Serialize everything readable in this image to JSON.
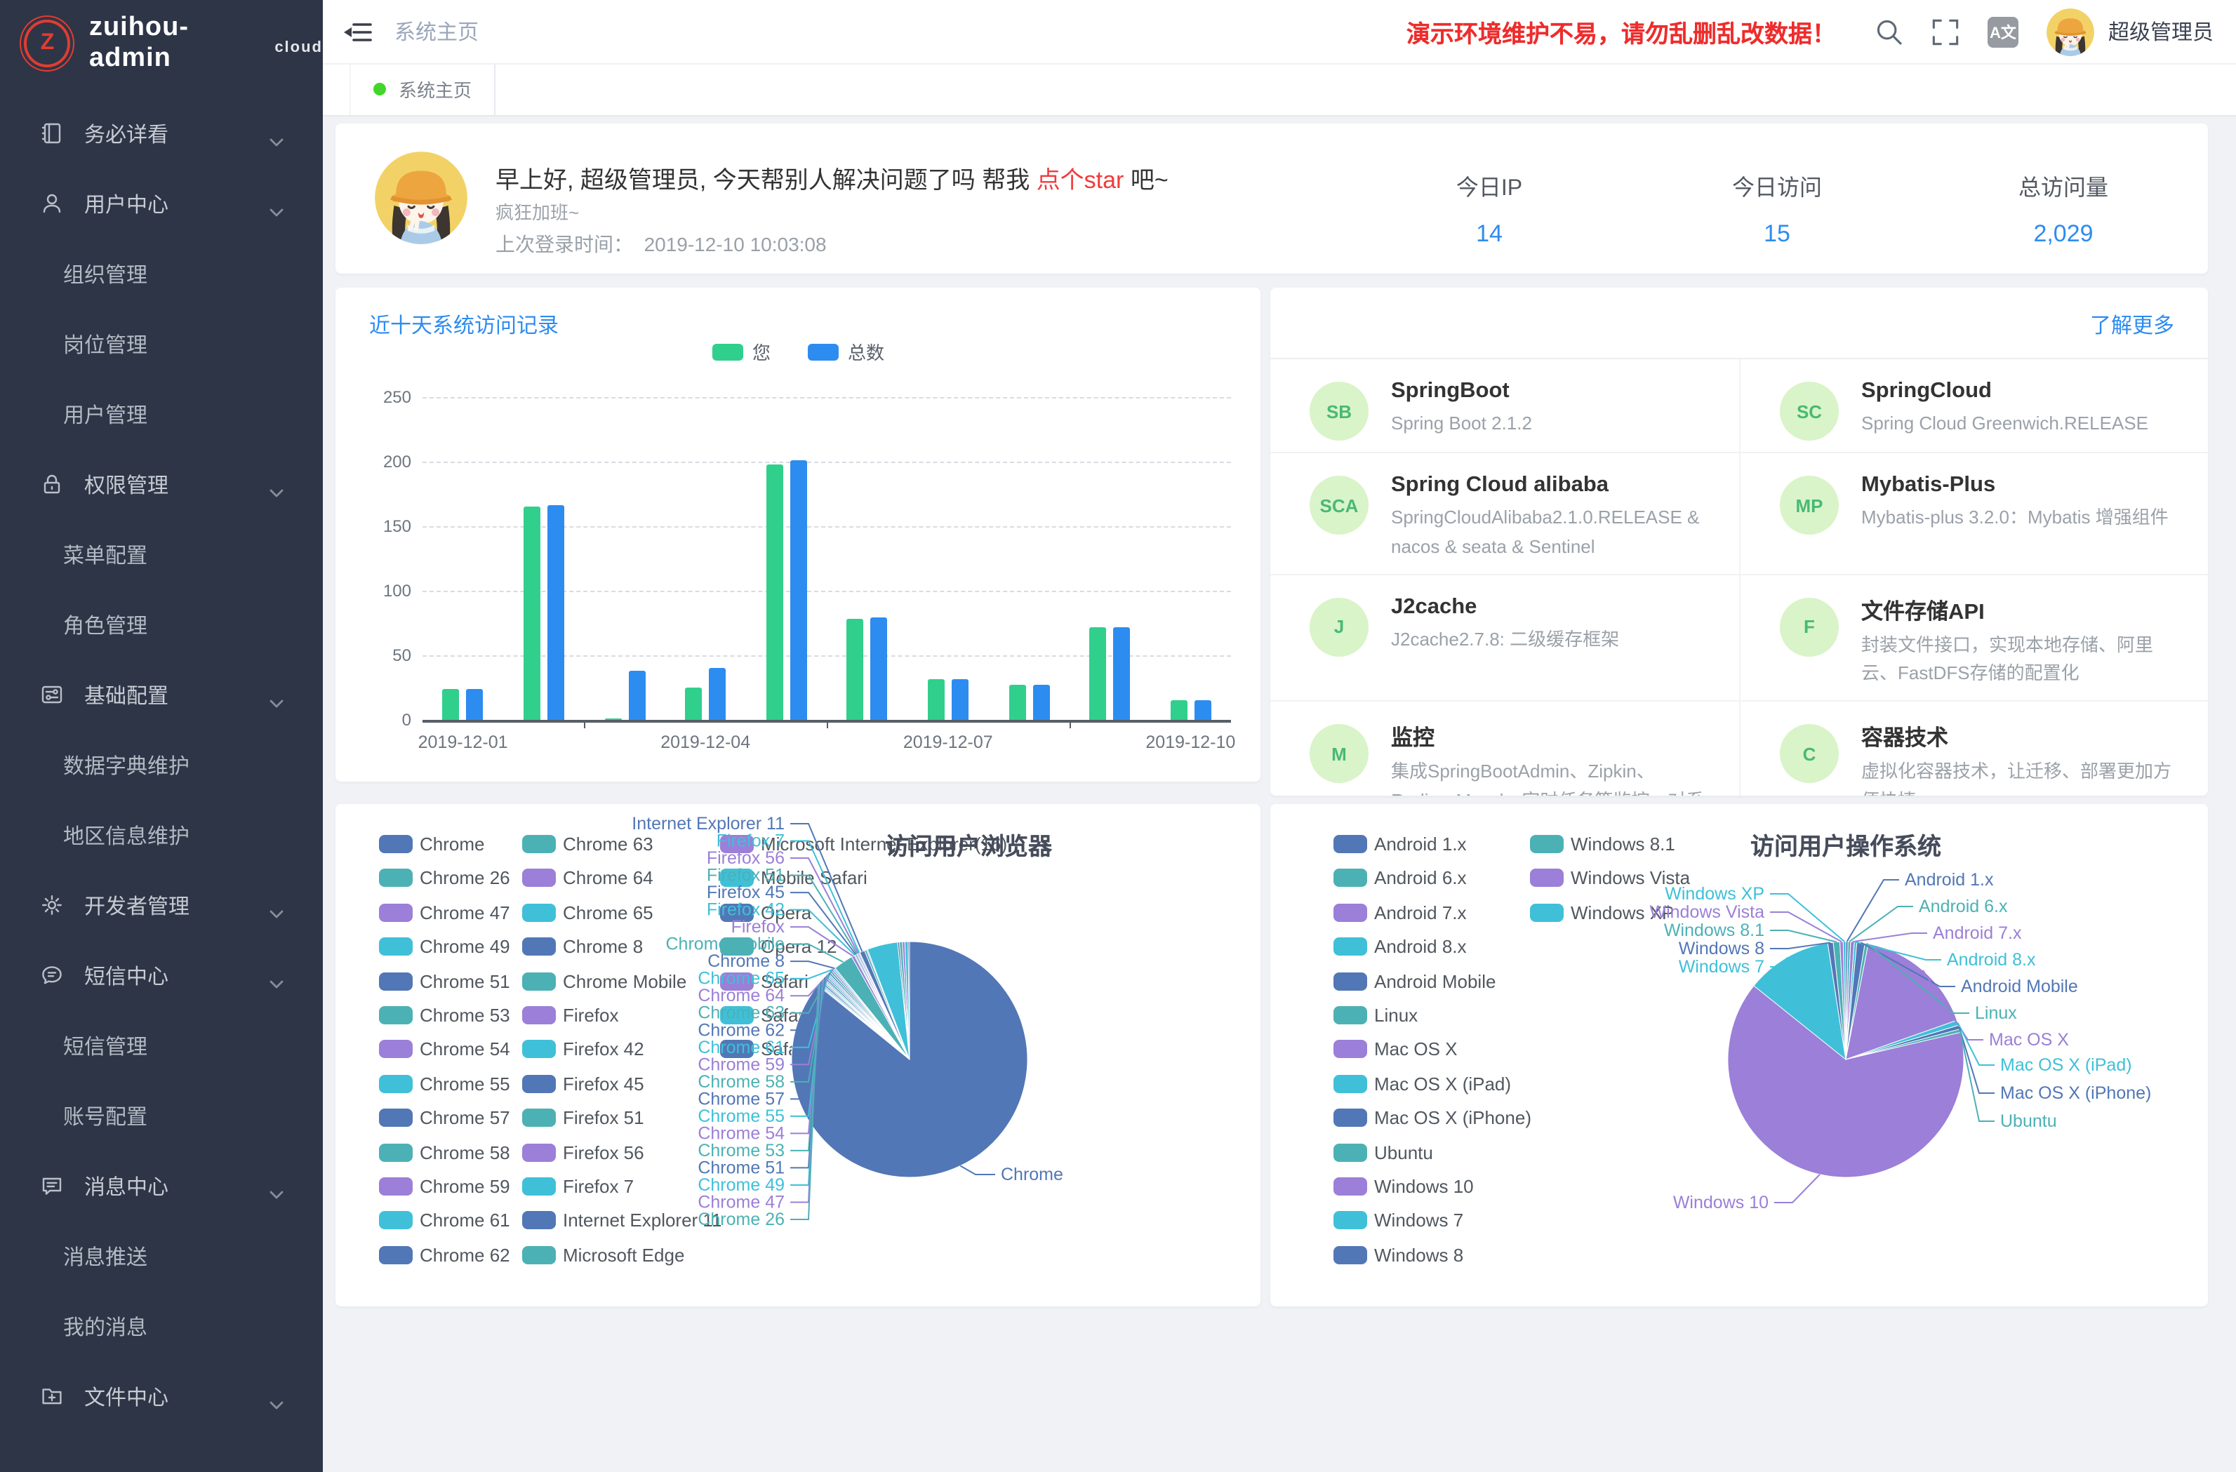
{
  "app": {
    "logo_text": "zuihou-admin",
    "logo_badge": "cloud",
    "logo_letter": "Z"
  },
  "topbar": {
    "breadcrumb": "系统主页",
    "warning": "演示环境维护不易，请勿乱删乱改数据！",
    "username": "超级管理员",
    "font_icon_text": "A文"
  },
  "tabbar": {
    "tabs": [
      {
        "label": "系统主页",
        "active": true
      }
    ]
  },
  "sidebar": {
    "menu": [
      {
        "label": "务必详看",
        "icon": "notebook",
        "type": "group"
      },
      {
        "label": "用户中心",
        "icon": "user",
        "type": "group"
      },
      {
        "label": "组织管理",
        "type": "sub"
      },
      {
        "label": "岗位管理",
        "type": "sub"
      },
      {
        "label": "用户管理",
        "type": "sub"
      },
      {
        "label": "权限管理",
        "icon": "lock",
        "type": "group"
      },
      {
        "label": "菜单配置",
        "type": "sub"
      },
      {
        "label": "角色管理",
        "type": "sub"
      },
      {
        "label": "基础配置",
        "icon": "tune",
        "type": "group"
      },
      {
        "label": "数据字典维护",
        "type": "sub"
      },
      {
        "label": "地区信息维护",
        "type": "sub"
      },
      {
        "label": "开发者管理",
        "icon": "gear",
        "type": "group"
      },
      {
        "label": "短信中心",
        "icon": "sms",
        "type": "group"
      },
      {
        "label": "短信管理",
        "type": "sub"
      },
      {
        "label": "账号配置",
        "type": "sub"
      },
      {
        "label": "消息中心",
        "icon": "message",
        "type": "group"
      },
      {
        "label": "消息推送",
        "type": "sub"
      },
      {
        "label": "我的消息",
        "type": "sub"
      },
      {
        "label": "文件中心",
        "icon": "folder",
        "type": "group"
      }
    ]
  },
  "greeting": {
    "title_prefix": "早上好, 超级管理员, 今天帮别人解决问题了吗 帮我 ",
    "title_link": "点个star",
    "title_suffix": " 吧~",
    "subtitle": "疯狂加班~",
    "last_login_label": "上次登录时间：",
    "last_login_time": "2019-12-10 10:03:08"
  },
  "stats": [
    {
      "label": "今日IP",
      "value": "14"
    },
    {
      "label": "今日访问",
      "value": "15"
    },
    {
      "label": "总访问量",
      "value": "2,029"
    }
  ],
  "tech": {
    "more_label": "了解更多",
    "cards": [
      {
        "abbr": "SB",
        "title": "SpringBoot",
        "desc": "Spring Boot 2.1.2"
      },
      {
        "abbr": "SC",
        "title": "SpringCloud",
        "desc": "Spring Cloud Greenwich.RELEASE"
      },
      {
        "abbr": "SCA",
        "title": "Spring Cloud alibaba",
        "desc": "SpringCloudAlibaba2.1.0.RELEASE & nacos & seata & Sentinel"
      },
      {
        "abbr": "MP",
        "title": "Mybatis-Plus",
        "desc": "Mybatis-plus 3.2.0：Mybatis 增强组件"
      },
      {
        "abbr": "J",
        "title": "J2cache",
        "desc": "J2cache2.7.8: 二级缓存框架"
      },
      {
        "abbr": "F",
        "title": "文件存储API",
        "desc": "封装文件接口，实现本地存储、阿里云、FastDFS存储的配置化"
      },
      {
        "abbr": "M",
        "title": "监控",
        "desc": "集成SpringBootAdmin、Zipkin、Redis、Mysql、定时任务等监控，对系统进行全方位监控护航"
      },
      {
        "abbr": "C",
        "title": "容器技术",
        "desc": "虚拟化容器技术，让迁移、部署更加方便快捷"
      }
    ]
  },
  "colors": {
    "accent_blue": "#2d8cf0",
    "bar_green": "#30cf8c",
    "warning_red": "#ee2c2c",
    "sidebar_bg": "#2e3546",
    "tab_dot_green": "#43d62a",
    "pie_palette": [
      "#5277b6",
      "#4cb1b5",
      "#9b7fd8",
      "#3fc0d8"
    ]
  },
  "chart_data": [
    {
      "type": "bar",
      "title": "近十天系统访问记录",
      "categories": [
        "2019-12-01",
        "2019-12-02",
        "2019-12-03",
        "2019-12-04",
        "2019-12-05",
        "2019-12-06",
        "2019-12-07",
        "2019-12-08",
        "2019-12-09",
        "2019-12-10"
      ],
      "x_label_indices": [
        0,
        3,
        6,
        9
      ],
      "series": [
        {
          "name": "您",
          "color": "#30cf8c",
          "values": [
            24,
            165,
            1,
            25,
            198,
            78,
            31,
            27,
            72,
            15
          ]
        },
        {
          "name": "总数",
          "color": "#2d8cf0",
          "values": [
            24,
            166,
            38,
            40,
            201,
            79,
            31,
            27,
            72,
            15
          ]
        }
      ],
      "ylim": [
        0,
        250
      ],
      "yticks": [
        0,
        50,
        100,
        150,
        200,
        250
      ],
      "grid": true,
      "legend_position": "top"
    },
    {
      "type": "pie",
      "title": "访问用户浏览器",
      "palette": [
        "#5277b6",
        "#4cb1b5",
        "#9b7fd8",
        "#3fc0d8"
      ],
      "legend_columns": [
        13,
        13,
        7
      ],
      "slices": [
        {
          "name": "Chrome",
          "value": 1745,
          "label_pos": "right-single"
        },
        {
          "name": "Chrome 26",
          "value": 3,
          "label_pos": "left"
        },
        {
          "name": "Chrome 47",
          "value": 3,
          "label_pos": "left"
        },
        {
          "name": "Chrome 49",
          "value": 4,
          "label_pos": "left"
        },
        {
          "name": "Chrome 51",
          "value": 5,
          "label_pos": "left"
        },
        {
          "name": "Chrome 53",
          "value": 4,
          "label_pos": "left"
        },
        {
          "name": "Chrome 54",
          "value": 3,
          "label_pos": "left"
        },
        {
          "name": "Chrome 55",
          "value": 4,
          "label_pos": "left"
        },
        {
          "name": "Chrome 57",
          "value": 5,
          "label_pos": "left"
        },
        {
          "name": "Chrome 58",
          "value": 5,
          "label_pos": "left"
        },
        {
          "name": "Chrome 59",
          "value": 4,
          "label_pos": "left"
        },
        {
          "name": "Chrome 61",
          "value": 4,
          "label_pos": "left"
        },
        {
          "name": "Chrome 62",
          "value": 5,
          "label_pos": "left"
        },
        {
          "name": "Chrome 63",
          "value": 6,
          "label_pos": "left"
        },
        {
          "name": "Chrome 64",
          "value": 5,
          "label_pos": "left"
        },
        {
          "name": "Chrome 65",
          "value": 4,
          "label_pos": "left"
        },
        {
          "name": "Chrome 8",
          "value": 3,
          "label_pos": "left"
        },
        {
          "name": "Chrome Mobile",
          "value": 55,
          "label_pos": "left"
        },
        {
          "name": "Firefox",
          "value": 8,
          "label_pos": "left"
        },
        {
          "name": "Firefox 42",
          "value": 3,
          "label_pos": "left"
        },
        {
          "name": "Firefox 45",
          "value": 4,
          "label_pos": "left"
        },
        {
          "name": "Firefox 51",
          "value": 3,
          "label_pos": "left"
        },
        {
          "name": "Firefox 56",
          "value": 4,
          "label_pos": "left"
        },
        {
          "name": "Firefox 7",
          "value": 3,
          "label_pos": "left"
        },
        {
          "name": "Internet Explorer 11",
          "value": 14,
          "label_pos": "left"
        },
        {
          "name": "Microsoft Edge",
          "value": 6,
          "label_pos": "none"
        },
        {
          "name": "Microsoft Internet Explorer(16)",
          "value": 3,
          "label_pos": "none"
        },
        {
          "name": "Mobile Safari",
          "value": 85,
          "label_pos": "none"
        },
        {
          "name": "Opera",
          "value": 5,
          "label_pos": "none"
        },
        {
          "name": "Opera 12",
          "value": 8,
          "label_pos": "none"
        },
        {
          "name": "Safari",
          "value": 7,
          "label_pos": "none"
        },
        {
          "name": "Safari 11",
          "value": 9,
          "label_pos": "none"
        },
        {
          "name": "Safari 9",
          "value": 4,
          "label_pos": "none"
        }
      ]
    },
    {
      "type": "pie",
      "title": "访问用户操作系统",
      "palette": [
        "#5277b6",
        "#4cb1b5",
        "#9b7fd8",
        "#3fc0d8"
      ],
      "legend_columns": [
        13,
        3
      ],
      "slices": [
        {
          "name": "Android 1.x",
          "value": 6,
          "label_pos": "right-a"
        },
        {
          "name": "Android 6.x",
          "value": 7,
          "label_pos": "right-a"
        },
        {
          "name": "Android 7.x",
          "value": 10,
          "label_pos": "right-a"
        },
        {
          "name": "Android 8.x",
          "value": 7,
          "label_pos": "right-a"
        },
        {
          "name": "Android Mobile",
          "value": 22,
          "label_pos": "right-a"
        },
        {
          "name": "Linux",
          "value": 9,
          "label_pos": "right-a"
        },
        {
          "name": "Mac OS X",
          "value": 330,
          "label_pos": "right-a"
        },
        {
          "name": "Mac OS X (iPad)",
          "value": 14,
          "label_pos": "right-b"
        },
        {
          "name": "Mac OS X (iPhone)",
          "value": 11,
          "label_pos": "right-b"
        },
        {
          "name": "Ubuntu",
          "value": 9,
          "label_pos": "right-b"
        },
        {
          "name": "Windows 10",
          "value": 1285,
          "label_pos": "bottom-left"
        },
        {
          "name": "Windows 7",
          "value": 235,
          "label_pos": "left"
        },
        {
          "name": "Windows 8",
          "value": 15,
          "label_pos": "left"
        },
        {
          "name": "Windows 8.1",
          "value": 18,
          "label_pos": "left"
        },
        {
          "name": "Windows Vista",
          "value": 9,
          "label_pos": "left"
        },
        {
          "name": "Windows XP",
          "value": 7,
          "label_pos": "left"
        }
      ]
    }
  ]
}
